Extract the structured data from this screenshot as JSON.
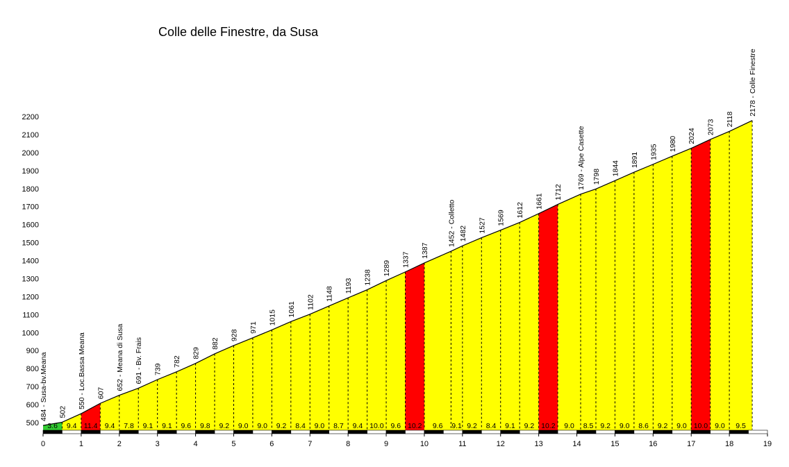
{
  "chart_data": {
    "type": "area",
    "title": "Colle delle Finestre, da Susa",
    "xlabel": "",
    "ylabel": "",
    "xlim": [
      0,
      19
    ],
    "ylim": [
      440,
      2200
    ],
    "x_ticks": [
      0,
      1,
      2,
      3,
      4,
      5,
      6,
      7,
      8,
      9,
      10,
      11,
      12,
      13,
      14,
      15,
      16,
      17,
      18,
      19
    ],
    "y_ticks": [
      500,
      600,
      700,
      800,
      900,
      1000,
      1100,
      1200,
      1300,
      1400,
      1500,
      1600,
      1700,
      1800,
      1900,
      2000,
      2100,
      2200
    ],
    "grid": false,
    "colors": {
      "easy": "#33cc33",
      "normal": "#ffff00",
      "steep": "#ff0000",
      "outline": "#000000"
    },
    "points": [
      {
        "x": 0,
        "y": 484,
        "label": "484 - Susa-bv.Meana"
      },
      {
        "x": 0.5,
        "y": 502,
        "label": "502"
      },
      {
        "x": 1,
        "y": 550,
        "label": "550 - Loc.Bassa Meana"
      },
      {
        "x": 1.5,
        "y": 607,
        "label": "607"
      },
      {
        "x": 2,
        "y": 652,
        "label": "652 - Meana di Susa"
      },
      {
        "x": 2.5,
        "y": 691,
        "label": "691 - Bv. Frais"
      },
      {
        "x": 3,
        "y": 739,
        "label": "739"
      },
      {
        "x": 3.5,
        "y": 782,
        "label": "782"
      },
      {
        "x": 4,
        "y": 829,
        "label": "829"
      },
      {
        "x": 4.5,
        "y": 882,
        "label": "882"
      },
      {
        "x": 5,
        "y": 928,
        "label": "928"
      },
      {
        "x": 5.5,
        "y": 971,
        "label": "971"
      },
      {
        "x": 6,
        "y": 1015,
        "label": "1015"
      },
      {
        "x": 6.5,
        "y": 1061,
        "label": "1061"
      },
      {
        "x": 7,
        "y": 1102,
        "label": "1102"
      },
      {
        "x": 7.5,
        "y": 1148,
        "label": "1148"
      },
      {
        "x": 8,
        "y": 1193,
        "label": "1193"
      },
      {
        "x": 8.5,
        "y": 1238,
        "label": "1238"
      },
      {
        "x": 9,
        "y": 1289,
        "label": "1289"
      },
      {
        "x": 9.5,
        "y": 1337,
        "label": "1337"
      },
      {
        "x": 10,
        "y": 1387,
        "label": "1387"
      },
      {
        "x": 10.7,
        "y": 1452,
        "label": "1452 - Colletto"
      },
      {
        "x": 11,
        "y": 1482,
        "label": "1482"
      },
      {
        "x": 11.5,
        "y": 1527,
        "label": "1527"
      },
      {
        "x": 12,
        "y": 1569,
        "label": "1569"
      },
      {
        "x": 12.5,
        "y": 1612,
        "label": "1612"
      },
      {
        "x": 13,
        "y": 1661,
        "label": "1661"
      },
      {
        "x": 13.5,
        "y": 1712,
        "label": "1712"
      },
      {
        "x": 14.1,
        "y": 1769,
        "label": "1769 - Alpe Casette"
      },
      {
        "x": 14.5,
        "y": 1798,
        "label": "1798"
      },
      {
        "x": 15,
        "y": 1844,
        "label": "1844"
      },
      {
        "x": 15.5,
        "y": 1891,
        "label": "1891"
      },
      {
        "x": 16,
        "y": 1935,
        "label": "1935"
      },
      {
        "x": 16.5,
        "y": 1980,
        "label": "1980"
      },
      {
        "x": 17,
        "y": 2024,
        "label": "2024"
      },
      {
        "x": 17.5,
        "y": 2073,
        "label": "2073"
      },
      {
        "x": 18,
        "y": 2118,
        "label": "2118"
      },
      {
        "x": 18.6,
        "y": 2178,
        "label": "2178 - Colle Finestre"
      }
    ],
    "segments": [
      {
        "x0": 0,
        "x1": 0.5,
        "grade": "3.6",
        "category": "easy"
      },
      {
        "x0": 0.5,
        "x1": 1,
        "grade": "9.4",
        "category": "normal"
      },
      {
        "x0": 1,
        "x1": 1.5,
        "grade": "11.4",
        "category": "steep"
      },
      {
        "x0": 1.5,
        "x1": 2,
        "grade": "9.4",
        "category": "normal"
      },
      {
        "x0": 2,
        "x1": 2.5,
        "grade": "7.8",
        "category": "normal"
      },
      {
        "x0": 2.5,
        "x1": 3,
        "grade": "9.1",
        "category": "normal"
      },
      {
        "x0": 3,
        "x1": 3.5,
        "grade": "9.1",
        "category": "normal"
      },
      {
        "x0": 3.5,
        "x1": 4,
        "grade": "9.6",
        "category": "normal"
      },
      {
        "x0": 4,
        "x1": 4.5,
        "grade": "9.8",
        "category": "normal"
      },
      {
        "x0": 4.5,
        "x1": 5,
        "grade": "9.2",
        "category": "normal"
      },
      {
        "x0": 5,
        "x1": 5.5,
        "grade": "9.0",
        "category": "normal"
      },
      {
        "x0": 5.5,
        "x1": 6,
        "grade": "9.0",
        "category": "normal"
      },
      {
        "x0": 6,
        "x1": 6.5,
        "grade": "9.2",
        "category": "normal"
      },
      {
        "x0": 6.5,
        "x1": 7,
        "grade": "8.4",
        "category": "normal"
      },
      {
        "x0": 7,
        "x1": 7.5,
        "grade": "9.0",
        "category": "normal"
      },
      {
        "x0": 7.5,
        "x1": 8,
        "grade": "8.7",
        "category": "normal"
      },
      {
        "x0": 8,
        "x1": 8.5,
        "grade": "9.4",
        "category": "normal"
      },
      {
        "x0": 8.5,
        "x1": 9,
        "grade": "10.0",
        "category": "normal"
      },
      {
        "x0": 9,
        "x1": 9.5,
        "grade": "9.6",
        "category": "normal"
      },
      {
        "x0": 9.5,
        "x1": 10,
        "grade": "10.2",
        "category": "steep"
      },
      {
        "x0": 10,
        "x1": 10.7,
        "grade": "9.6",
        "category": "normal"
      },
      {
        "x0": 10.7,
        "x1": 11,
        "grade": "9.1",
        "category": "normal"
      },
      {
        "x0": 11,
        "x1": 11.5,
        "grade": "9.2",
        "category": "normal"
      },
      {
        "x0": 11.5,
        "x1": 12,
        "grade": "8.4",
        "category": "normal"
      },
      {
        "x0": 12,
        "x1": 12.5,
        "grade": "9.1",
        "category": "normal"
      },
      {
        "x0": 12.5,
        "x1": 13,
        "grade": "9.2",
        "category": "normal"
      },
      {
        "x0": 13,
        "x1": 13.5,
        "grade": "10.2",
        "category": "steep"
      },
      {
        "x0": 13.5,
        "x1": 14.1,
        "grade": "9.0",
        "category": "normal"
      },
      {
        "x0": 14.1,
        "x1": 14.5,
        "grade": "8.5",
        "category": "normal"
      },
      {
        "x0": 14.5,
        "x1": 15,
        "grade": "9.2",
        "category": "normal"
      },
      {
        "x0": 15,
        "x1": 15.5,
        "grade": "9.0",
        "category": "normal"
      },
      {
        "x0": 15.5,
        "x1": 16,
        "grade": "8.6",
        "category": "normal"
      },
      {
        "x0": 16,
        "x1": 16.5,
        "grade": "9.2",
        "category": "normal"
      },
      {
        "x0": 16.5,
        "x1": 17,
        "grade": "9.0",
        "category": "normal"
      },
      {
        "x0": 17,
        "x1": 17.5,
        "grade": "10.0",
        "category": "steep"
      },
      {
        "x0": 17.5,
        "x1": 18,
        "grade": "9.0",
        "category": "normal"
      },
      {
        "x0": 18,
        "x1": 18.6,
        "grade": "9.5",
        "category": "normal"
      }
    ]
  }
}
